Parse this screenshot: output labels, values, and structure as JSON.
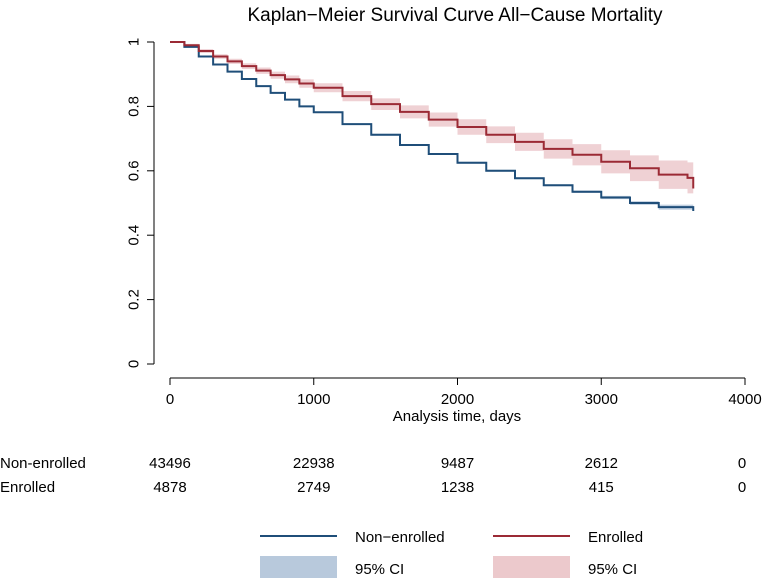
{
  "chart_data": {
    "type": "line",
    "title": "Kaplan−Meier Survival Curve All−Cause Mortality",
    "xlabel": "Analysis time, days",
    "ylabel": "",
    "xlim": [
      0,
      4000
    ],
    "ylim": [
      0,
      1
    ],
    "x_ticks": [
      0,
      1000,
      2000,
      3000,
      4000
    ],
    "y_ticks": [
      0,
      0.2,
      0.4,
      0.6,
      0.8,
      1
    ],
    "x_tick_labels": [
      "0",
      "1000",
      "2000",
      "3000",
      "4000"
    ],
    "y_tick_labels": [
      "0",
      "0.2",
      "0.4",
      "0.6",
      "0.8",
      "1"
    ],
    "grid": false,
    "legend_position": "bottom",
    "series": [
      {
        "name": "Non−enrolled",
        "color": "#1f4e79",
        "ci_label": "95% CI",
        "ci_color": "#b8c9dc",
        "x": [
          0,
          100,
          200,
          300,
          400,
          500,
          600,
          700,
          800,
          900,
          1000,
          1200,
          1400,
          1600,
          1800,
          2000,
          2200,
          2400,
          2600,
          2800,
          3000,
          3200,
          3400,
          3640
        ],
        "y": [
          1.0,
          0.985,
          0.955,
          0.93,
          0.908,
          0.885,
          0.863,
          0.842,
          0.821,
          0.8,
          0.782,
          0.745,
          0.712,
          0.68,
          0.652,
          0.625,
          0.6,
          0.577,
          0.555,
          0.535,
          0.517,
          0.5,
          0.487,
          0.475
        ],
        "ci_lower": [
          1.0,
          0.983,
          0.953,
          0.928,
          0.906,
          0.883,
          0.861,
          0.84,
          0.819,
          0.798,
          0.78,
          0.743,
          0.709,
          0.677,
          0.649,
          0.622,
          0.597,
          0.574,
          0.552,
          0.531,
          0.512,
          0.494,
          0.479,
          0.464
        ],
        "ci_upper": [
          1.0,
          0.987,
          0.957,
          0.932,
          0.91,
          0.887,
          0.865,
          0.844,
          0.823,
          0.802,
          0.784,
          0.747,
          0.715,
          0.683,
          0.655,
          0.628,
          0.603,
          0.58,
          0.558,
          0.539,
          0.522,
          0.506,
          0.495,
          0.486
        ]
      },
      {
        "name": "Enrolled",
        "color": "#9b2a35",
        "ci_label": "95% CI",
        "ci_color": "#ecc9cc",
        "x": [
          0,
          100,
          200,
          300,
          400,
          500,
          600,
          700,
          800,
          900,
          1000,
          1200,
          1400,
          1600,
          1800,
          2000,
          2200,
          2400,
          2600,
          2800,
          3000,
          3200,
          3400,
          3600,
          3640
        ],
        "y": [
          1.0,
          0.99,
          0.972,
          0.955,
          0.94,
          0.925,
          0.911,
          0.897,
          0.884,
          0.871,
          0.858,
          0.832,
          0.807,
          0.783,
          0.759,
          0.736,
          0.712,
          0.69,
          0.668,
          0.65,
          0.628,
          0.608,
          0.588,
          0.578,
          0.545
        ],
        "ci_lower": [
          1.0,
          0.986,
          0.966,
          0.948,
          0.932,
          0.916,
          0.901,
          0.886,
          0.872,
          0.858,
          0.844,
          0.816,
          0.789,
          0.763,
          0.737,
          0.712,
          0.686,
          0.662,
          0.638,
          0.617,
          0.592,
          0.568,
          0.544,
          0.53,
          0.49
        ],
        "ci_upper": [
          1.0,
          0.994,
          0.978,
          0.962,
          0.948,
          0.934,
          0.921,
          0.908,
          0.896,
          0.884,
          0.872,
          0.848,
          0.825,
          0.803,
          0.781,
          0.76,
          0.738,
          0.718,
          0.698,
          0.683,
          0.664,
          0.648,
          0.632,
          0.626,
          0.6
        ]
      }
    ],
    "risk_table": {
      "times": [
        0,
        1000,
        2000,
        3000,
        4000
      ],
      "rows": [
        {
          "label": "Non-enrolled",
          "values": [
            "43496",
            "22938",
            "9487",
            "2612",
            "0"
          ]
        },
        {
          "label": "Enrolled",
          "values": [
            "4878",
            "2749",
            "1238",
            "415",
            "0"
          ]
        }
      ]
    }
  }
}
